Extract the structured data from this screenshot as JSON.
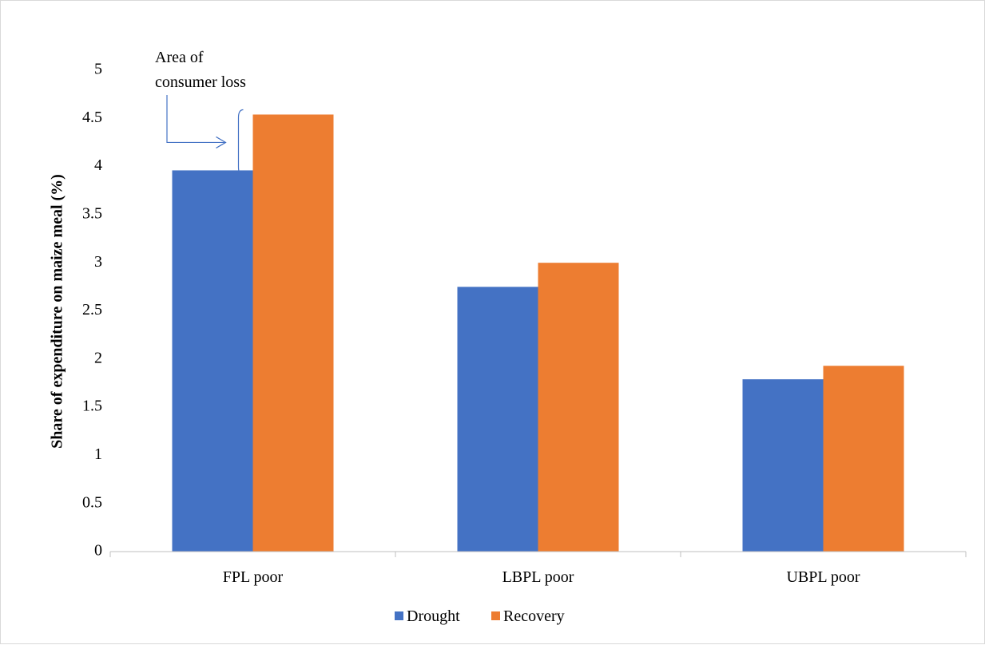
{
  "chart_data": {
    "type": "bar",
    "categories": [
      "FPL poor",
      "LBPL poor",
      "UBPL poor"
    ],
    "series": [
      {
        "name": "Drought",
        "values": [
          3.96,
          2.75,
          1.79
        ],
        "color": "#4472C4"
      },
      {
        "name": "Recovery",
        "values": [
          4.54,
          3.0,
          1.93
        ],
        "color": "#ED7D31"
      }
    ],
    "ylabel": "Share of expenditure on maize meal  (%)",
    "xlabel": "",
    "ylim": [
      0,
      5
    ],
    "yticks": [
      "0",
      "0.5",
      "1",
      "1.5",
      "2",
      "2.5",
      "3",
      "3.5",
      "4",
      "4.5",
      "5"
    ],
    "grid": false,
    "legend_position": "bottom",
    "annotation": {
      "lines": [
        "Area of",
        "consumer loss"
      ],
      "range": [
        3.96,
        4.54
      ]
    }
  }
}
